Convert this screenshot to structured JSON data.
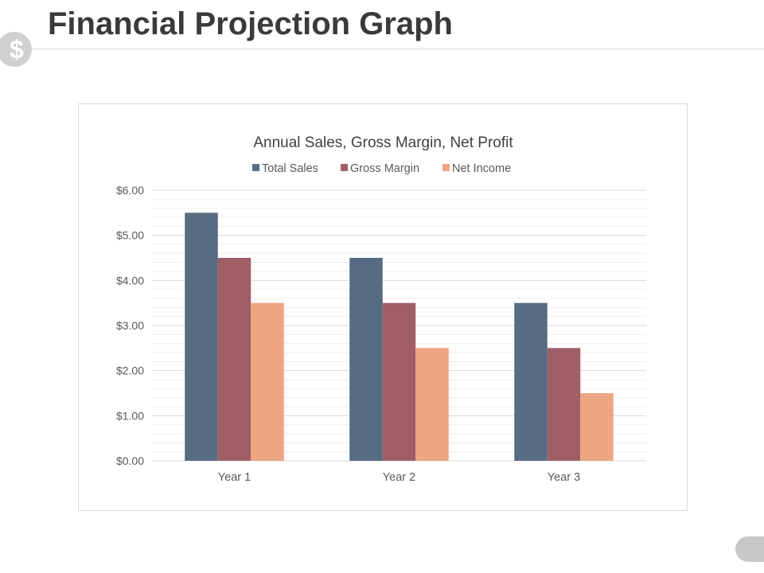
{
  "slide": {
    "title": "Financial Projection Graph",
    "badge_glyph": "$"
  },
  "colors": {
    "total_sales": "#566c82",
    "gross_margin": "#a05e66",
    "net_income": "#eda582",
    "gridline": "#d9d9d9",
    "minor_gridline": "#eeeeee",
    "axis_text": "#595959"
  },
  "chart_data": {
    "type": "bar",
    "title": "Annual Sales, Gross Margin, Net Profit",
    "categories": [
      "Year 1",
      "Year 2",
      "Year 3"
    ],
    "series": [
      {
        "name": "Total Sales",
        "color": "#566c82",
        "values": [
          5.5,
          4.5,
          3.5
        ]
      },
      {
        "name": "Gross Margin",
        "color": "#a05e66",
        "values": [
          4.5,
          3.5,
          2.5
        ]
      },
      {
        "name": "Net Income",
        "color": "#eda582",
        "values": [
          3.5,
          2.5,
          1.5
        ]
      }
    ],
    "ylim": [
      0,
      6
    ],
    "yticks": [
      0,
      1,
      2,
      3,
      4,
      5,
      6
    ],
    "ytick_labels": [
      "$0.00",
      "$1.00",
      "$2.00",
      "$3.00",
      "$4.00",
      "$5.00",
      "$6.00"
    ],
    "xlabel": "",
    "ylabel": "",
    "grid": true,
    "minor_grid": true,
    "legend_position": "top"
  }
}
